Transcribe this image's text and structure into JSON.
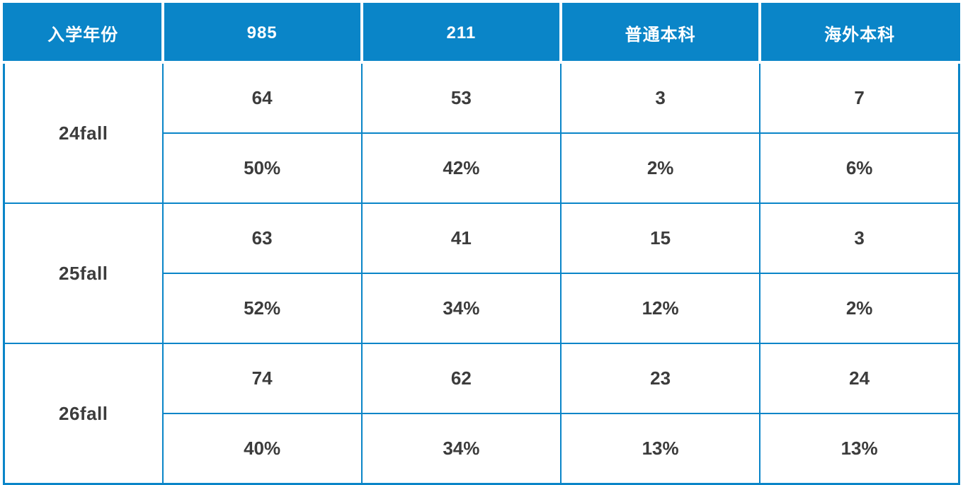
{
  "chart_data": {
    "type": "table",
    "columns": [
      "入学年份",
      "985",
      "211",
      "普通本科",
      "海外本科"
    ],
    "rows": [
      {
        "label": "24fall",
        "counts": [
          "64",
          "53",
          "3",
          "7"
        ],
        "percents": [
          "50%",
          "42%",
          "2%",
          "6%"
        ]
      },
      {
        "label": "25fall",
        "counts": [
          "63",
          "41",
          "15",
          "3"
        ],
        "percents": [
          "52%",
          "34%",
          "12%",
          "2%"
        ]
      },
      {
        "label": "26fall",
        "counts": [
          "74",
          "62",
          "23",
          "24"
        ],
        "percents": [
          "40%",
          "34%",
          "13%",
          "13%"
        ]
      }
    ],
    "layout": {
      "header_position": "top",
      "row_structure": "each year has a count sub-row and a percent sub-row",
      "grid": "on"
    }
  },
  "colors": {
    "header_bg": "#0a85c8",
    "header_text": "#ffffff",
    "border": "#0a85c8",
    "body_text": "#3c3c3c",
    "cell_bg": "#ffffff"
  }
}
